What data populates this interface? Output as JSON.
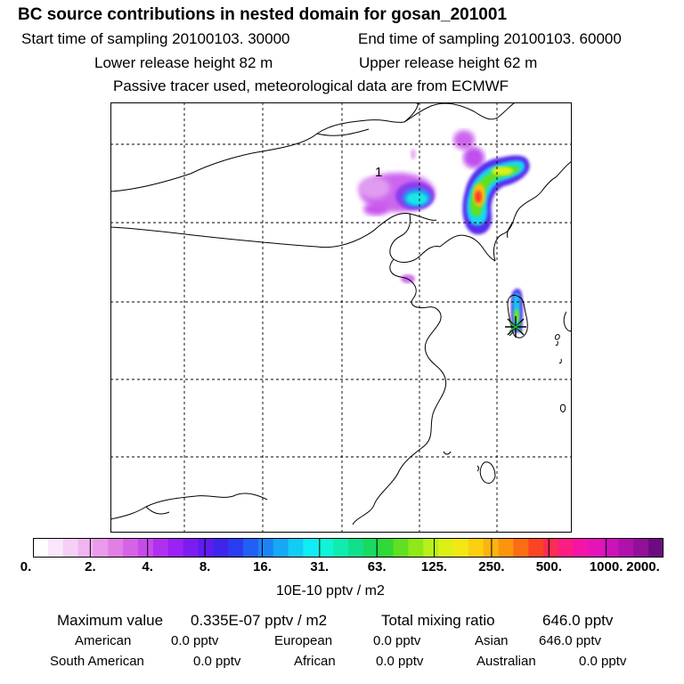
{
  "header": {
    "title": "BC  source contributions in nested domain for gosan_201001",
    "start_time": "Start time of sampling 20100103. 30000",
    "end_time": "End time of sampling 20100103. 60000",
    "lower_release": "Lower release height   82 m",
    "upper_release": "Upper release height   62 m",
    "tracer_note": "Passive tracer used, meteorological data are from ECMWF"
  },
  "map": {
    "label": "1",
    "gridlines": true,
    "receptor_marker": "asterisk-star-icon"
  },
  "colorbar": {
    "ticks": [
      "0.",
      "2.",
      "4.",
      "8.",
      "16.",
      "31.",
      "63.",
      "125.",
      "250.",
      "500.",
      "1000.",
      "2000."
    ],
    "colors": [
      "#ffffff",
      "#fbe6fb",
      "#f6cff6",
      "#f0b5f0",
      "#ea9bea",
      "#e07fe4",
      "#d463e6",
      "#c74aea",
      "#b030f0",
      "#9a22f2",
      "#7c1cf0",
      "#5e1cee",
      "#3f24ec",
      "#2b3cf0",
      "#2060f4",
      "#1a84f6",
      "#16a8f6",
      "#12ccf6",
      "#10ecf4",
      "#10f4d8",
      "#10ecb0",
      "#10e08c",
      "#18da60",
      "#30d838",
      "#60e020",
      "#90e818",
      "#b8f018",
      "#dcf018",
      "#f4e814",
      "#fcd010",
      "#fcb40e",
      "#fc940c",
      "#fc6c14",
      "#fc4424",
      "#fc2c54",
      "#fc1c84",
      "#f414a8",
      "#e414b8",
      "#cc12b8",
      "#b010ac",
      "#901098",
      "#6c0c80"
    ],
    "unit": "10E-10 pptv / m2"
  },
  "stats": {
    "max_label": "Maximum value",
    "max_value": "0.335E-07 pptv / m2",
    "total_label": "Total mixing ratio",
    "total_value": "646.0 pptv",
    "regions": [
      {
        "name": "American",
        "value": "0.0 pptv"
      },
      {
        "name": "European",
        "value": "0.0 pptv"
      },
      {
        "name": "Asian",
        "value": "646.0 pptv"
      },
      {
        "name": "South American",
        "value": "0.0 pptv"
      },
      {
        "name": "African",
        "value": "0.0 pptv"
      },
      {
        "name": "Australian",
        "value": "0.0 pptv"
      }
    ]
  }
}
